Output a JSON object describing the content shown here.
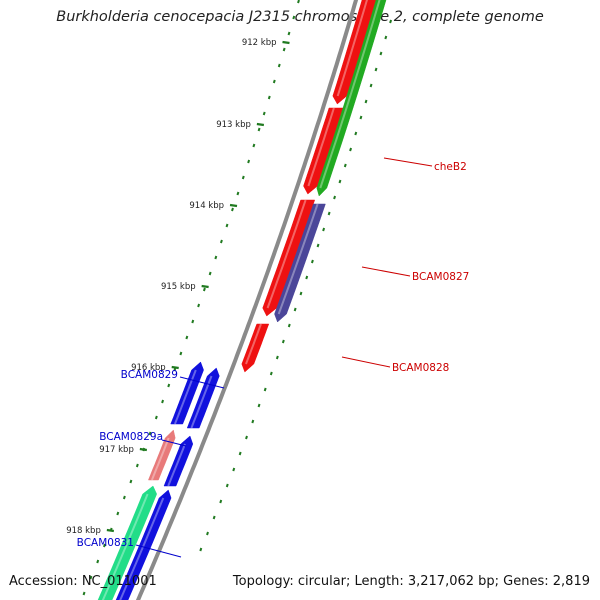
{
  "header": {
    "title": "Burkholderia cenocepacia J2315 chromosome 2, complete genome"
  },
  "footer": {
    "accession": "Accession: NC_011001",
    "summary": "Topology: circular; Length: 3,217,062 bp; Genes: 2,819"
  },
  "ruler": {
    "unit": "kbp",
    "ticks": [
      {
        "label": "912 kbp",
        "kbp": 912
      },
      {
        "label": "913 kbp",
        "kbp": 913
      },
      {
        "label": "914 kbp",
        "kbp": 914
      },
      {
        "label": "915 kbp",
        "kbp": 915
      },
      {
        "label": "916 kbp",
        "kbp": 916
      },
      {
        "label": "917 kbp",
        "kbp": 917
      },
      {
        "label": "918 kbp",
        "kbp": 918
      }
    ]
  },
  "colors": {
    "red_gene": "#ee1111",
    "green_gene": "#22aa22",
    "purple_gene": "#4b4699",
    "blue_gene": "#1111dd",
    "pink_gene": "#e87a7a",
    "teal_gene": "#22dd88",
    "red_label": "#cc0000",
    "blue_label": "#0000cc",
    "ruler": "#207a20",
    "backbone": "#8a8a8a"
  },
  "labels": [
    {
      "text": "cheB2",
      "side": "right",
      "color": "red"
    },
    {
      "text": "BCAM0827",
      "side": "right",
      "color": "red"
    },
    {
      "text": "BCAM0828",
      "side": "right",
      "color": "red"
    },
    {
      "text": "BCAM0829",
      "side": "left",
      "color": "blue"
    },
    {
      "text": "BCAM0829a",
      "side": "left",
      "color": "blue"
    },
    {
      "text": "BCAM0831",
      "side": "left",
      "color": "blue"
    }
  ]
}
